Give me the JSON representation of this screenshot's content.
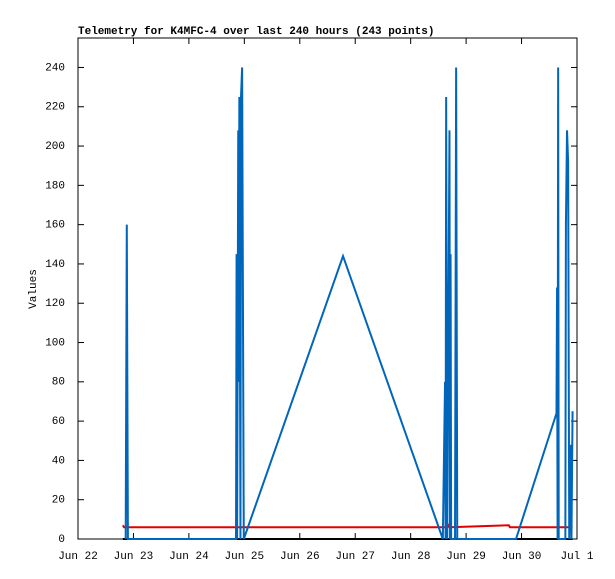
{
  "chart_data": {
    "type": "line",
    "title": "Telemetry for K4MFC-4 over last 240 hours (243 points)",
    "ylabel": "Values",
    "xlim": [
      22,
      31
    ],
    "xticks": [
      {
        "value": 22,
        "label": "Jun 22"
      },
      {
        "value": 23,
        "label": "Jun 23"
      },
      {
        "value": 24,
        "label": "Jun 24"
      },
      {
        "value": 25,
        "label": "Jun 25"
      },
      {
        "value": 26,
        "label": "Jun 26"
      },
      {
        "value": 27,
        "label": "Jun 27"
      },
      {
        "value": 28,
        "label": "Jun 28"
      },
      {
        "value": 29,
        "label": "Jun 29"
      },
      {
        "value": 30,
        "label": "Jun 30"
      },
      {
        "value": 31,
        "label": "Jul 1"
      }
    ],
    "ylim": [
      0,
      255
    ],
    "yticks": [
      0,
      20,
      40,
      60,
      80,
      100,
      120,
      140,
      160,
      180,
      200,
      220,
      240
    ],
    "series": [
      {
        "color": "#000000",
        "x": [
          22.81,
          30.92
        ],
        "values": [
          0,
          0
        ]
      },
      {
        "color": "#e00000",
        "x": [
          22.81,
          22.83,
          28.67,
          28.69,
          28.71,
          29.77,
          29.79,
          30.92
        ],
        "values": [
          7,
          6,
          6,
          7,
          6,
          7,
          6,
          6
        ]
      },
      {
        "color": "#0066bb",
        "x": [
          22.86,
          22.88,
          22.9,
          24.85,
          24.86,
          24.87,
          24.89,
          24.9,
          24.91,
          24.93,
          24.94,
          24.96,
          24.99,
          26.78,
          28.58,
          28.62,
          28.63,
          28.64,
          28.66,
          28.7,
          28.71,
          28.72,
          28.73,
          28.8,
          28.82,
          28.84,
          29.9,
          30.63,
          30.64,
          30.65,
          30.66,
          30.67,
          30.79,
          30.8,
          30.82,
          30.84,
          30.86,
          30.87,
          30.89,
          30.9,
          30.92
        ],
        "values": [
          0,
          160,
          0,
          0,
          145,
          0,
          208,
          80,
          225,
          0,
          225,
          240,
          0,
          144,
          0,
          80,
          0,
          225,
          0,
          208,
          0,
          145,
          0,
          0,
          240,
          0,
          0,
          64,
          128,
          0,
          240,
          0,
          0,
          160,
          208,
          192,
          0,
          17,
          48,
          0,
          65
        ]
      }
    ]
  }
}
